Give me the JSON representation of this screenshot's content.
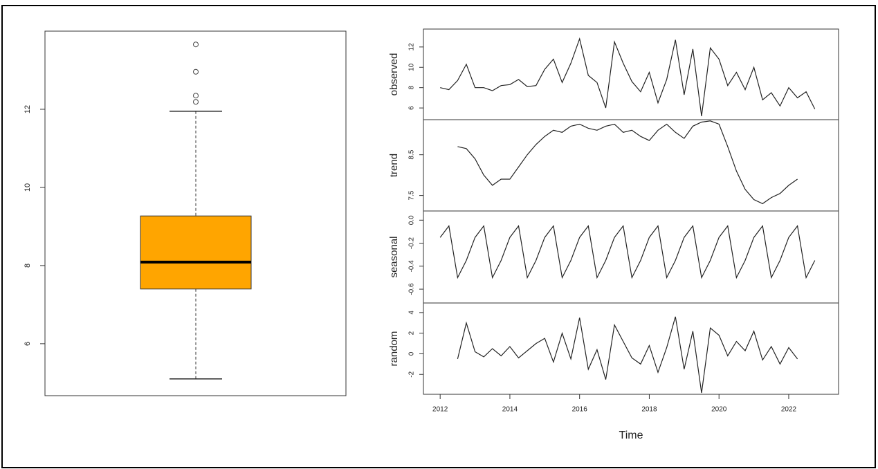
{
  "chart_data": [
    {
      "type": "boxplot",
      "ylim": [
        4.67,
        14.0
      ],
      "yticks": [
        6,
        8,
        10,
        12
      ],
      "color": "#ffa500",
      "whisker_low": 5.1,
      "q1": 7.4,
      "median": 8.09,
      "q3": 9.27,
      "whisker_high": 11.95,
      "outliers": [
        12.19,
        12.35,
        12.96,
        13.66
      ]
    },
    {
      "type": "decomposition",
      "xlabel": "Time",
      "xlim": [
        2011.52,
        2023.43
      ],
      "xticks": [
        2012,
        2014,
        2016,
        2018,
        2020,
        2022
      ],
      "x": [
        2012,
        2012.25,
        2012.5,
        2012.75,
        2013,
        2013.25,
        2013.5,
        2013.75,
        2014,
        2014.25,
        2014.5,
        2014.75,
        2015,
        2015.25,
        2015.5,
        2015.75,
        2016,
        2016.25,
        2016.5,
        2016.75,
        2017,
        2017.25,
        2017.5,
        2017.75,
        2018,
        2018.25,
        2018.5,
        2018.75,
        2019,
        2019.25,
        2019.5,
        2019.75,
        2020,
        2020.25,
        2020.5,
        2020.75,
        2021,
        2021.25,
        2021.5,
        2021.75,
        2022,
        2022.25,
        2022.5,
        2022.75
      ],
      "panels": [
        {
          "name": "observed",
          "ylim": [
            4.85,
            13.76
          ],
          "yticks": [
            6,
            8,
            10,
            12
          ],
          "values": [
            8.0,
            7.8,
            8.7,
            10.3,
            8.0,
            8.0,
            7.7,
            8.2,
            8.3,
            8.8,
            8.1,
            8.2,
            9.8,
            10.8,
            8.5,
            10.4,
            12.8,
            9.2,
            8.5,
            6.0,
            12.5,
            10.4,
            8.6,
            7.6,
            9.5,
            6.5,
            8.8,
            12.7,
            7.3,
            11.8,
            5.2,
            11.9,
            10.8,
            8.2,
            9.5,
            7.8,
            10.0,
            6.8,
            7.5,
            6.2,
            8.0,
            7.0,
            7.6,
            5.9
          ]
        },
        {
          "name": "trend",
          "ylim": [
            7.12,
            9.36
          ],
          "yticks": [
            7.5,
            8.5
          ],
          "values": [
            null,
            null,
            8.7,
            8.65,
            8.4,
            8.0,
            7.75,
            7.9,
            7.9,
            8.2,
            8.5,
            8.75,
            8.95,
            9.1,
            9.05,
            9.2,
            9.25,
            9.15,
            9.1,
            9.2,
            9.25,
            9.05,
            9.1,
            8.95,
            8.85,
            9.1,
            9.25,
            9.05,
            8.9,
            9.2,
            9.3,
            9.33,
            9.25,
            8.7,
            8.1,
            7.65,
            7.4,
            7.3,
            7.45,
            7.55,
            7.75,
            7.9,
            null,
            null
          ]
        },
        {
          "name": "seasonal",
          "ylim": [
            -0.72,
            0.08
          ],
          "yticks": [
            {
              "value": 0,
              "label": "0.0"
            },
            -0.2,
            -0.4,
            -0.6
          ],
          "values": [
            -0.15,
            -0.05,
            -0.5,
            -0.35,
            -0.15,
            -0.05,
            -0.5,
            -0.35,
            -0.15,
            -0.05,
            -0.5,
            -0.35,
            -0.15,
            -0.05,
            -0.5,
            -0.35,
            -0.15,
            -0.05,
            -0.5,
            -0.35,
            -0.15,
            -0.05,
            -0.5,
            -0.35,
            -0.15,
            -0.05,
            -0.5,
            -0.35,
            -0.15,
            -0.05,
            -0.5,
            -0.35,
            -0.15,
            -0.05,
            -0.5,
            -0.35,
            -0.15,
            -0.05,
            -0.5,
            -0.35,
            -0.15,
            -0.05,
            -0.5,
            -0.35
          ]
        },
        {
          "name": "random",
          "ylim": [
            -3.93,
            4.93
          ],
          "yticks": [
            -2,
            0,
            2,
            4
          ],
          "values": [
            null,
            null,
            -0.5,
            3.0,
            0.2,
            -0.3,
            0.5,
            -0.2,
            0.7,
            -0.4,
            0.3,
            1.0,
            1.5,
            -0.8,
            2.0,
            -0.5,
            3.5,
            -1.5,
            0.4,
            -2.5,
            2.8,
            1.2,
            -0.4,
            -1.0,
            0.8,
            -1.8,
            0.6,
            3.6,
            -1.5,
            2.2,
            -3.8,
            2.5,
            1.8,
            -0.2,
            1.2,
            0.3,
            2.2,
            -0.6,
            0.7,
            -1.0,
            0.6,
            -0.5,
            null,
            null
          ]
        }
      ]
    }
  ]
}
